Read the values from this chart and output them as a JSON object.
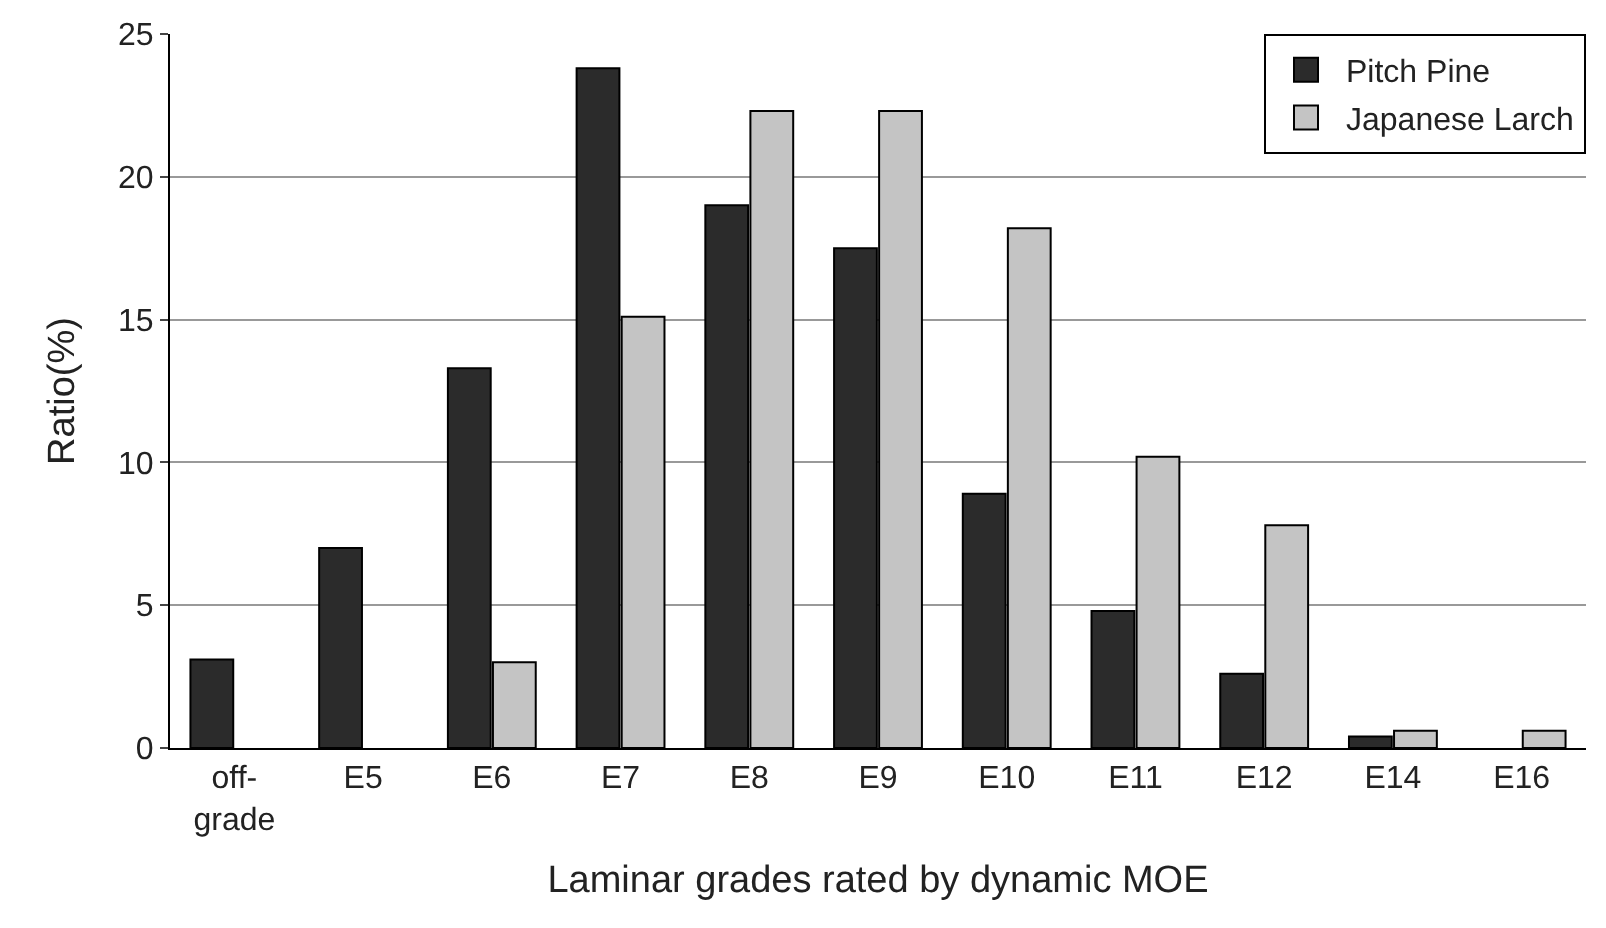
{
  "chart_data": {
    "type": "bar",
    "xlabel": "Laminar grades rated by dynamic MOE",
    "ylabel": "Ratio(%)",
    "categories": [
      "off-grade",
      "E5",
      "E6",
      "E7",
      "E8",
      "E9",
      "E10",
      "E11",
      "E12",
      "E14",
      "E16"
    ],
    "series": [
      {
        "name": "Pitch Pine",
        "color": "#2b2b2b",
        "values": [
          3.1,
          7.0,
          13.3,
          23.8,
          19.0,
          17.5,
          8.9,
          4.8,
          2.6,
          0.4,
          null
        ]
      },
      {
        "name": "Japanese Larch",
        "color": "#c4c4c4",
        "values": [
          null,
          null,
          3.0,
          15.1,
          22.3,
          22.3,
          18.2,
          10.2,
          7.8,
          0.6,
          0.6
        ]
      }
    ],
    "ylim": [
      0,
      25
    ],
    "yticks": [
      0,
      5,
      10,
      15,
      20,
      25
    ],
    "grid": "y",
    "legend": "top right"
  }
}
